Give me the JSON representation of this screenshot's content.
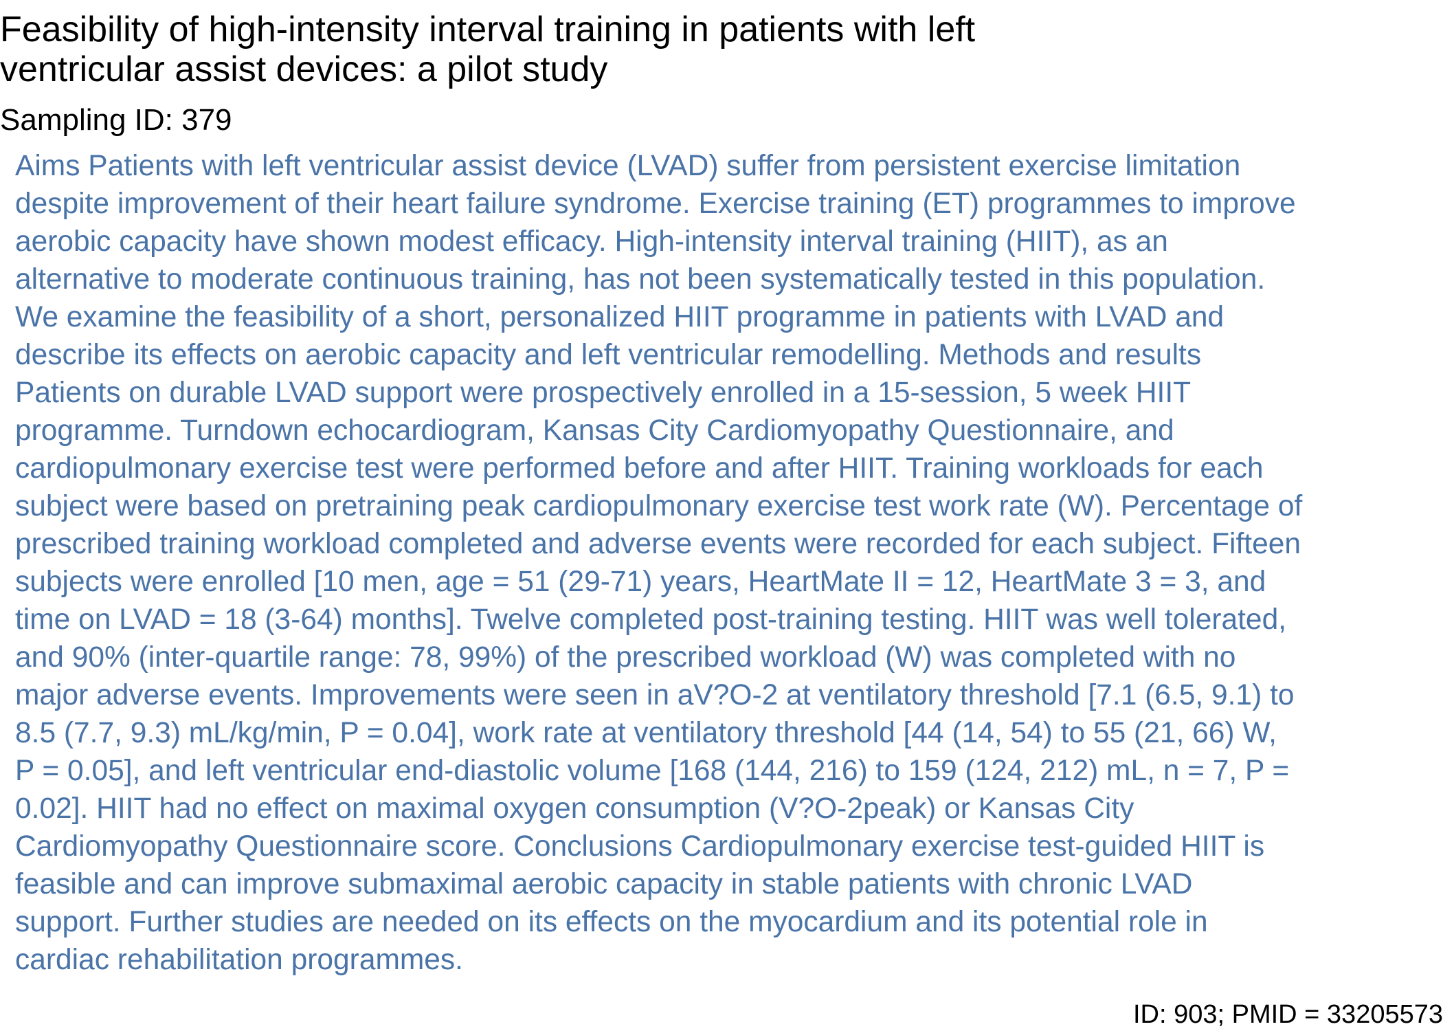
{
  "paper": {
    "title_lines": [
      "Feasibility of high-intensity interval training in patients with left",
      "ventricular assist devices: a pilot study"
    ],
    "sampling_id": "Sampling ID: 379",
    "abstract_lines": [
      "Aims Patients with left ventricular assist device (LVAD) suffer from persistent exercise limitation",
      "despite improvement of their heart failure syndrome. Exercise training (ET) programmes to improve",
      "aerobic capacity have shown modest efficacy. High-intensity interval training (HIIT), as an",
      "alternative to moderate continuous training, has not been systematically tested in this population.",
      "We examine the feasibility of a short, personalized HIIT programme in patients with LVAD and",
      "describe its effects on aerobic capacity and left ventricular remodelling. Methods and results",
      "Patients on durable LVAD support were prospectively enrolled in a 15-session, 5 week HIIT",
      "programme. Turndown echocardiogram, Kansas City Cardiomyopathy Questionnaire, and",
      "cardiopulmonary exercise test were performed before and after HIIT. Training workloads for each",
      "subject were based on pretraining peak cardiopulmonary exercise test work rate (W). Percentage of",
      "prescribed training workload completed and adverse events were recorded for each subject. Fifteen",
      "subjects were enrolled [10 men, age = 51 (29-71) years, HeartMate II = 12, HeartMate 3 = 3, and",
      "time on LVAD = 18 (3-64) months]. Twelve completed post-training testing. HIIT was well tolerated,",
      "and 90% (inter-quartile range: 78, 99%) of the prescribed workload (W) was completed with no",
      "major adverse events. Improvements were seen in aV?O-2 at ventilatory threshold [7.1 (6.5, 9.1) to",
      "8.5 (7.7, 9.3) mL/kg/min, P = 0.04], work rate at ventilatory threshold [44 (14, 54) to 55 (21, 66) W,",
      "P = 0.05], and left ventricular end-diastolic volume [168 (144, 216) to 159 (124, 212) mL, n = 7, P =",
      "0.02]. HIIT had no effect on maximal oxygen consumption (V?O-2peak) or Kansas City",
      "Cardiomyopathy Questionnaire score. Conclusions Cardiopulmonary exercise test-guided HIIT is",
      "feasible and can improve submaximal aerobic capacity in stable patients with chronic LVAD",
      "support. Further studies are needed on its effects on the myocardium and its potential role in",
      "cardiac rehabilitation programmes."
    ],
    "footer": "ID: 903; PMID = 33205573"
  },
  "colors": {
    "title": "#000000",
    "abstract": "#4a74a8",
    "background": "#ffffff"
  }
}
